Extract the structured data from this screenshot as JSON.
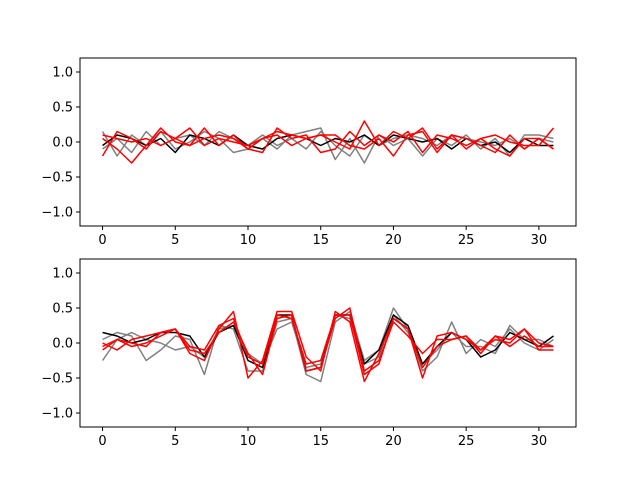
{
  "chart_data": [
    {
      "type": "line",
      "title": "",
      "xlabel": "",
      "ylabel": "",
      "xlim": [
        -1.55,
        32.55
      ],
      "ylim": [
        -1.2,
        1.2
      ],
      "x_ticks": [
        0,
        5,
        10,
        15,
        20,
        25,
        30
      ],
      "y_ticks": [
        -1.0,
        -0.5,
        0.0,
        0.5,
        1.0
      ],
      "x_tick_labels": [
        "0",
        "5",
        "10",
        "15",
        "20",
        "25",
        "30"
      ],
      "y_tick_labels": [
        "−1.0",
        "−0.5",
        "0.0",
        "0.5",
        "1.0"
      ],
      "grid": false,
      "legend": "none",
      "x": [
        0,
        1,
        2,
        3,
        4,
        5,
        6,
        7,
        8,
        9,
        10,
        11,
        12,
        13,
        14,
        15,
        16,
        17,
        18,
        19,
        20,
        21,
        22,
        23,
        24,
        25,
        26,
        27,
        28,
        29,
        30,
        31
      ],
      "series": [
        {
          "color": "#808080",
          "values": [
            0.15,
            -0.2,
            0.1,
            -0.05,
            0.15,
            -0.1,
            0.0,
            0.15,
            0.05,
            -0.15,
            -0.1,
            0.05,
            -0.1,
            0.1,
            0.15,
            0.2,
            -0.25,
            0.05,
            -0.3,
            0.1,
            -0.05,
            0.05,
            -0.2,
            0.05,
            -0.05,
            0.1,
            -0.1,
            0.05,
            -0.2,
            0.1,
            0.1,
            0.05
          ]
        },
        {
          "color": "#808080",
          "values": [
            -0.1,
            0.05,
            -0.15,
            0.15,
            -0.05,
            0.05,
            0.1,
            -0.05,
            0.15,
            0.05,
            -0.05,
            0.1,
            -0.05,
            0.05,
            -0.1,
            0.15,
            -0.05,
            -0.2,
            0.1,
            -0.05,
            0.05,
            0.1,
            0.05,
            -0.05,
            0.1,
            0.05,
            0.0,
            -0.05,
            0.05,
            -0.1,
            0.05,
            0.0
          ]
        },
        {
          "color": "#000000",
          "values": [
            -0.05,
            0.1,
            0.05,
            -0.05,
            0.05,
            -0.15,
            0.1,
            0.05,
            -0.05,
            0.1,
            -0.05,
            -0.1,
            0.05,
            0.1,
            0.05,
            -0.05,
            0.05,
            0.0,
            0.1,
            -0.05,
            0.1,
            0.05,
            0.0,
            0.05,
            -0.1,
            0.05,
            -0.05,
            0.0,
            -0.15,
            0.05,
            -0.05,
            -0.05
          ]
        },
        {
          "color": "#ff0000",
          "values": [
            -0.2,
            0.15,
            0.05,
            -0.1,
            0.15,
            0.05,
            -0.05,
            0.2,
            -0.05,
            0.1,
            -0.1,
            0.05,
            0.15,
            0.1,
            0.05,
            0.1,
            0.0,
            -0.1,
            0.3,
            -0.05,
            0.15,
            0.05,
            0.2,
            -0.1,
            0.1,
            0.05,
            -0.05,
            -0.15,
            0.1,
            -0.1,
            0.05,
            -0.1
          ]
        },
        {
          "color": "#ff0000",
          "values": [
            0.05,
            -0.1,
            -0.3,
            -0.05,
            0.2,
            0.0,
            -0.05,
            0.05,
            0.1,
            0.05,
            -0.1,
            -0.15,
            0.2,
            0.05,
            0.1,
            -0.15,
            -0.1,
            0.15,
            -0.05,
            0.1,
            0.0,
            0.15,
            -0.15,
            0.1,
            0.05,
            -0.05,
            0.05,
            0.1,
            0.0,
            -0.05,
            -0.05,
            0.2
          ]
        },
        {
          "color": "#ff0000",
          "values": [
            0.1,
            0.05,
            0.0,
            0.05,
            -0.05,
            0.05,
            0.2,
            -0.05,
            0.05,
            0.0,
            -0.05,
            0.05,
            0.1,
            -0.05,
            0.05,
            0.1,
            0.1,
            -0.05,
            -0.1,
            0.05,
            -0.2,
            0.1,
            0.15,
            -0.15,
            0.1,
            -0.1,
            0.05,
            -0.1,
            -0.2,
            0.05,
            0.05,
            -0.1
          ]
        }
      ]
    },
    {
      "type": "line",
      "title": "",
      "xlabel": "",
      "ylabel": "",
      "xlim": [
        -1.55,
        32.55
      ],
      "ylim": [
        -1.2,
        1.2
      ],
      "x_ticks": [
        0,
        5,
        10,
        15,
        20,
        25,
        30
      ],
      "y_ticks": [
        -1.0,
        -0.5,
        0.0,
        0.5,
        1.0
      ],
      "x_tick_labels": [
        "0",
        "5",
        "10",
        "15",
        "20",
        "25",
        "30"
      ],
      "y_tick_labels": [
        "−1.0",
        "−0.5",
        "0.0",
        "0.5",
        "1.0"
      ],
      "grid": false,
      "legend": "none",
      "x": [
        0,
        1,
        2,
        3,
        4,
        5,
        6,
        7,
        8,
        9,
        10,
        11,
        12,
        13,
        14,
        15,
        16,
        17,
        18,
        19,
        20,
        21,
        22,
        23,
        24,
        25,
        26,
        27,
        28,
        29,
        30,
        31
      ],
      "series": [
        {
          "color": "#808080",
          "values": [
            0.05,
            0.15,
            0.1,
            -0.25,
            -0.1,
            0.1,
            0.05,
            -0.45,
            0.25,
            0.2,
            -0.4,
            -0.4,
            0.3,
            0.35,
            -0.45,
            -0.55,
            0.3,
            0.45,
            -0.25,
            -0.1,
            0.5,
            0.2,
            -0.4,
            -0.2,
            0.3,
            -0.15,
            0.05,
            -0.05,
            0.2,
            0.0,
            -0.1,
            0.05
          ]
        },
        {
          "color": "#808080",
          "values": [
            -0.25,
            0.05,
            0.15,
            0.05,
            0.0,
            -0.1,
            -0.05,
            -0.2,
            0.2,
            0.25,
            -0.15,
            -0.3,
            0.2,
            0.3,
            -0.35,
            -0.3,
            0.4,
            0.35,
            -0.3,
            -0.2,
            0.4,
            0.15,
            -0.3,
            -0.1,
            0.15,
            -0.05,
            -0.05,
            -0.15,
            0.25,
            0.05,
            0.05,
            -0.05
          ]
        },
        {
          "color": "#000000",
          "values": [
            0.15,
            0.1,
            0.0,
            0.05,
            0.15,
            0.15,
            0.1,
            -0.2,
            0.15,
            0.25,
            -0.25,
            -0.35,
            0.4,
            0.4,
            -0.4,
            -0.35,
            0.4,
            0.4,
            -0.3,
            -0.1,
            0.4,
            0.25,
            -0.3,
            -0.05,
            0.15,
            0.05,
            -0.2,
            -0.1,
            0.15,
            0.05,
            -0.05,
            0.1
          ]
        },
        {
          "color": "#ff0000",
          "values": [
            -0.1,
            0.05,
            -0.05,
            0.0,
            0.1,
            0.2,
            -0.15,
            -0.25,
            0.2,
            0.45,
            -0.5,
            -0.25,
            0.45,
            0.45,
            -0.2,
            -0.4,
            0.45,
            0.3,
            -0.55,
            -0.15,
            0.35,
            0.2,
            -0.5,
            0.1,
            0.15,
            0.05,
            -0.1,
            0.05,
            0.0,
            0.2,
            -0.1,
            -0.1
          ]
        },
        {
          "color": "#ff0000",
          "values": [
            0.0,
            -0.1,
            0.05,
            0.1,
            0.15,
            0.2,
            -0.1,
            -0.15,
            0.15,
            0.3,
            -0.15,
            -0.45,
            0.35,
            0.4,
            -0.4,
            -0.35,
            0.35,
            0.5,
            -0.4,
            -0.25,
            0.3,
            0.1,
            -0.15,
            0.05,
            0.05,
            0.1,
            -0.15,
            0.1,
            -0.05,
            0.1,
            -0.05,
            -0.05
          ]
        },
        {
          "color": "#ff0000",
          "values": [
            -0.05,
            0.05,
            0.0,
            -0.05,
            0.15,
            0.2,
            -0.05,
            -0.1,
            0.25,
            0.35,
            -0.2,
            -0.3,
            0.4,
            0.35,
            -0.3,
            -0.25,
            0.4,
            0.4,
            -0.45,
            -0.3,
            0.35,
            0.2,
            -0.35,
            -0.05,
            0.05,
            0.1,
            -0.1,
            0.1,
            0.05,
            0.2,
            0.0,
            -0.05
          ]
        }
      ]
    }
  ]
}
